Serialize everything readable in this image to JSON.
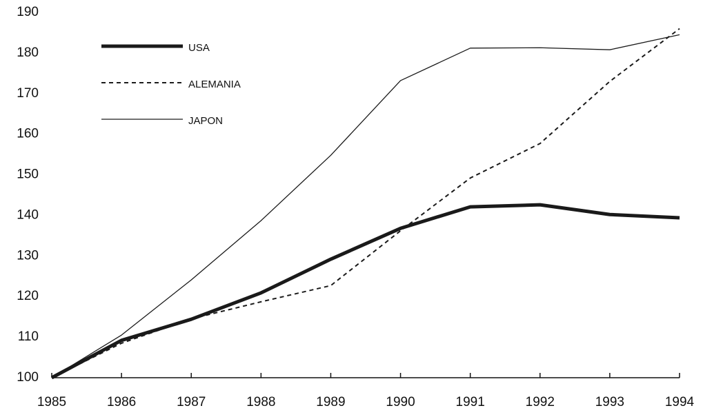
{
  "chart_data": {
    "type": "line",
    "x": [
      1985,
      1986,
      1987,
      1988,
      1989,
      1990,
      1991,
      1992,
      1993,
      1994
    ],
    "series": [
      {
        "name": "USA",
        "color": "#1a1a1a",
        "style": "thick",
        "values": [
          100,
          109.2,
          114.4,
          120.9,
          129.2,
          136.8,
          142.1,
          142.6,
          140.2,
          139.4
        ]
      },
      {
        "name": "ALEMANIA",
        "color": "#1a1a1a",
        "style": "dashed",
        "values": [
          100,
          108.5,
          114.5,
          118.7,
          122.7,
          136.2,
          149.2,
          157.7,
          173,
          186
        ]
      },
      {
        "name": "JAPON",
        "color": "#1a1a1a",
        "style": "thin",
        "values": [
          100,
          110.5,
          124.1,
          138.7,
          154.8,
          173.2,
          181.2,
          181.3,
          180.8,
          184.5
        ]
      }
    ],
    "xlim": [
      1985,
      1994
    ],
    "xticks": [
      1985,
      1986,
      1987,
      1988,
      1989,
      1990,
      1991,
      1992,
      1993,
      1994
    ],
    "ylim": [
      100,
      190
    ],
    "yticks": [
      100,
      110,
      120,
      130,
      140,
      150,
      160,
      170,
      180,
      190
    ],
    "legend": "top-left"
  }
}
